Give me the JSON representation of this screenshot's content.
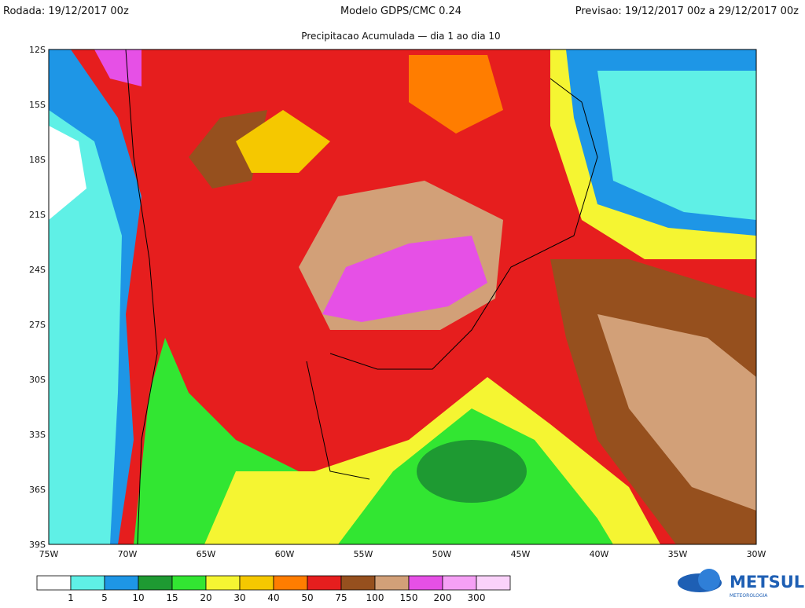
{
  "header": {
    "run": "Rodada: 19/12/2017 00z",
    "model": "Modelo GDPS/CMC 0.24",
    "forecast": "Previsao: 19/12/2017 00z a 29/12/2017 00z",
    "subtitle": "Precipitacao Acumulada — dia 1 ao dia 10"
  },
  "map": {
    "lat_labels": [
      "12S",
      "15S",
      "18S",
      "21S",
      "24S",
      "27S",
      "30S",
      "33S",
      "36S",
      "39S"
    ],
    "lon_labels": [
      "75W",
      "70W",
      "65W",
      "60W",
      "55W",
      "50W",
      "45W",
      "40W",
      "35W",
      "30W"
    ]
  },
  "legend": {
    "levels": [
      1,
      5,
      10,
      15,
      20,
      30,
      40,
      50,
      75,
      100,
      150,
      200,
      300
    ],
    "colors": [
      "#ffffff",
      "#5ff0e6",
      "#1e96e6",
      "#1e9a32",
      "#32e632",
      "#f5f532",
      "#f5c800",
      "#ff7d00",
      "#e61e1e",
      "#96501e",
      "#d2a078",
      "#e650e6",
      "#f5a0f5",
      "#fad2fa"
    ]
  },
  "logo": {
    "name": "METSUL",
    "tagline": "METEOROLOGIA"
  }
}
